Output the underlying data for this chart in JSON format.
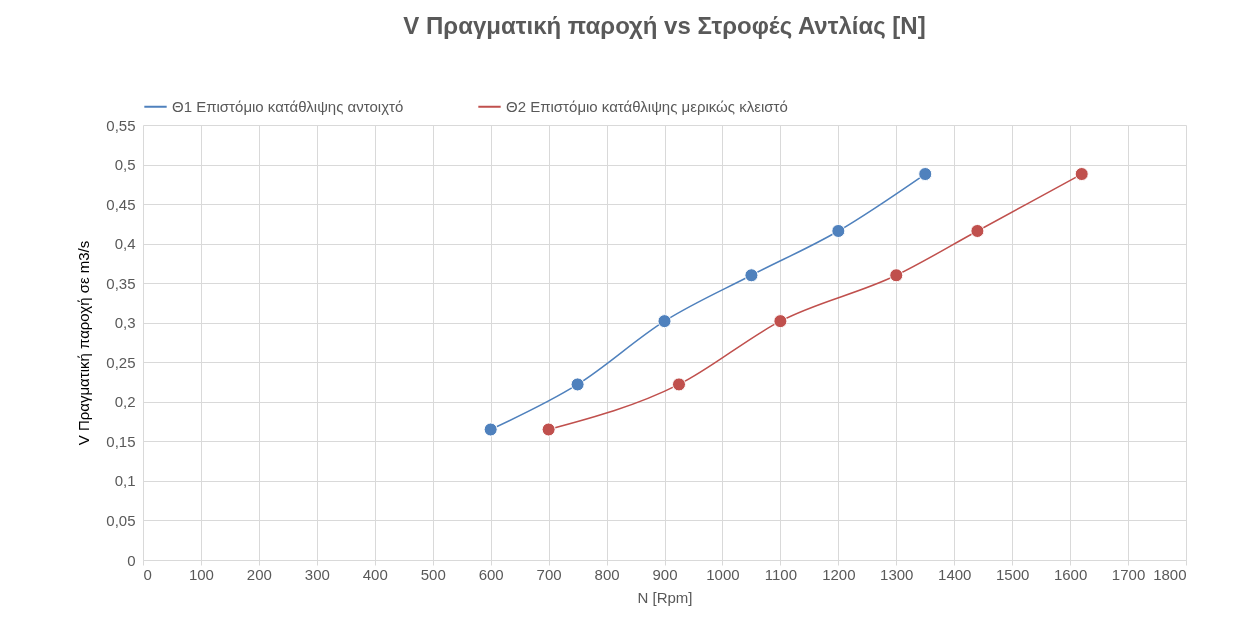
{
  "chart_data": {
    "type": "line",
    "title": "V Πραγματική παροχή vs Στροφές Αντλίας [N]",
    "xlabel": "N [Rpm]",
    "ylabel": "V Πραγματική παροχή σε m3/s",
    "series": [
      {
        "name": "Θ1 Επιστόμιο κατάθλιψης αντοιχτό",
        "color": "#4f81bd",
        "x": [
          600,
          750,
          900,
          1050,
          1200,
          1350
        ],
        "values": [
          0.165,
          0.222,
          0.302,
          0.36,
          0.416,
          0.488
        ]
      },
      {
        "name": "Θ2 Επιστόμιο κατάθλιψης μερικώς κλειστό",
        "color": "#c0504d",
        "x": [
          700,
          925,
          1100,
          1300,
          1440,
          1620
        ],
        "values": [
          0.165,
          0.222,
          0.302,
          0.36,
          0.416,
          0.488
        ]
      }
    ],
    "xlim": [
      0,
      1800
    ],
    "xticks": [
      0,
      100,
      200,
      300,
      400,
      500,
      600,
      700,
      800,
      900,
      1000,
      1100,
      1200,
      1300,
      1400,
      1500,
      1600,
      1700,
      1800
    ],
    "ylim": [
      0,
      0.55
    ],
    "yticks": [
      0,
      {
        "value": 0.05,
        "label": "0,05"
      },
      {
        "value": 0.1,
        "label": "0,1"
      },
      {
        "value": 0.15,
        "label": "0,15"
      },
      {
        "value": 0.2,
        "label": "0,2"
      },
      {
        "value": 0.25,
        "label": "0,25"
      },
      {
        "value": 0.3,
        "label": "0,3"
      },
      {
        "value": 0.35,
        "label": "0,35"
      },
      {
        "value": 0.4,
        "label": "0,4"
      },
      {
        "value": 0.45,
        "label": "0,45"
      },
      {
        "value": 0.5,
        "label": "0,5"
      },
      {
        "value": 0.55,
        "label": "0,55"
      }
    ],
    "grid": true,
    "legend": "top",
    "marker": "circle",
    "line_style": "solid"
  }
}
